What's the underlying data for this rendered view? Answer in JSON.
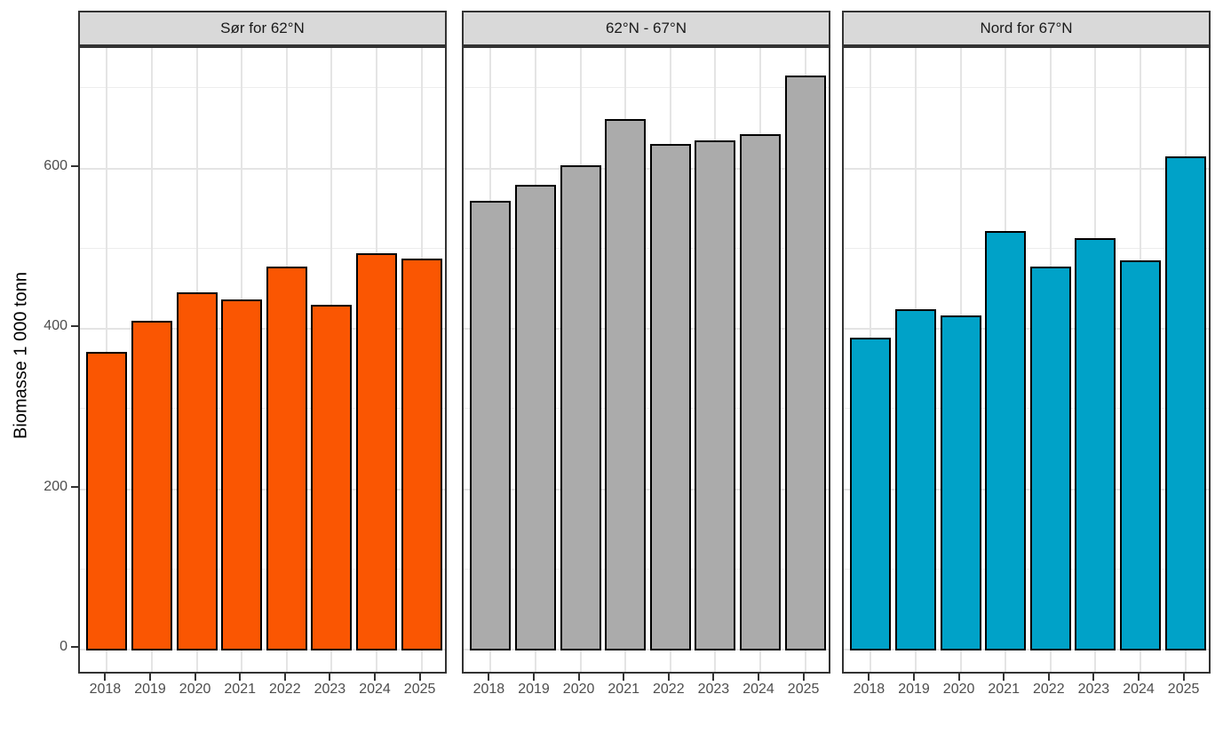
{
  "chart_data": {
    "type": "bar",
    "title": "",
    "xlabel": "",
    "ylabel": "Biomasse 1 000 tonn",
    "categories": [
      "2018",
      "2019",
      "2020",
      "2021",
      "2022",
      "2023",
      "2024",
      "2025"
    ],
    "yticks": [
      "0",
      "200",
      "400",
      "600"
    ],
    "ytick_values": [
      0,
      200,
      400,
      600
    ],
    "minor_ytick_values": [
      100,
      300,
      500,
      700
    ],
    "ylim": [
      0,
      750
    ],
    "grid": "on",
    "legend": "none",
    "facets": [
      {
        "label": "Sør for 62°N",
        "color": "#FA5602",
        "values": [
          370,
          409,
          444,
          436,
          477,
          429,
          493,
          486
        ]
      },
      {
        "label": "62°N - 67°N",
        "color": "#ABABAB",
        "values": [
          558,
          579,
          603,
          660,
          629,
          634,
          642,
          715
        ]
      },
      {
        "label": "Nord for 67°N",
        "color": "#00A2C8",
        "values": [
          388,
          423,
          416,
          521,
          477,
          512,
          484,
          614
        ]
      }
    ]
  },
  "colors": {
    "bar_outline": "#000000",
    "panel_border": "#333333",
    "strip_background": "#D9D9D9",
    "gridline_major": "#E4E4E4",
    "gridline_minor": "#EDEDED",
    "axis_text": "#4D4D4D",
    "background": "#FFFFFF"
  }
}
